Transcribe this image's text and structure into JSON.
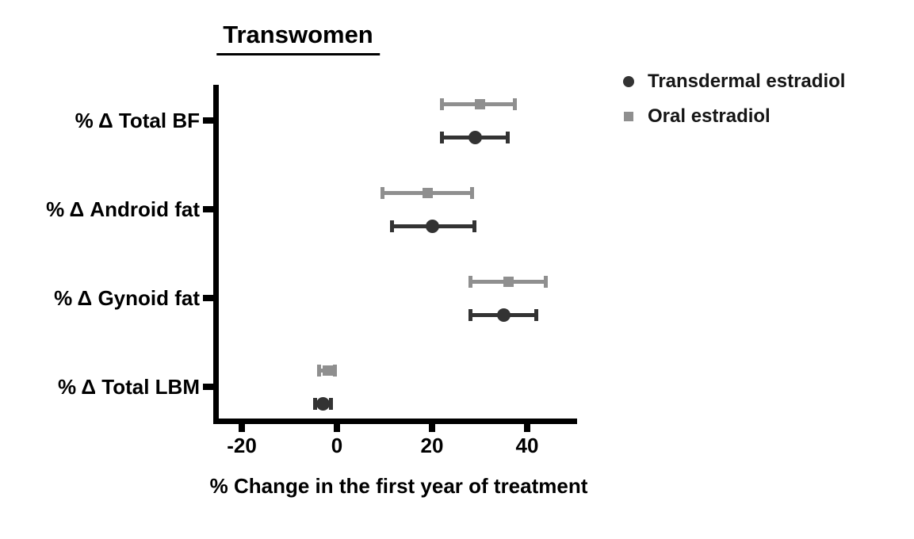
{
  "chart_data": {
    "type": "scatter",
    "subtype": "horizontal-point-estimates-with-error-bars",
    "title": "Transwomen",
    "xlabel": "% Change in the first year of treatment",
    "categories": [
      "% Δ Total BF",
      "% Δ Android fat",
      "% Δ Gynoid fat",
      "% Δ Total LBM"
    ],
    "x_ticks": [
      "-20",
      "0",
      "20",
      "40"
    ],
    "x_tick_values": [
      -20,
      0,
      20,
      40
    ],
    "xlim": [
      -26,
      50.5
    ],
    "grid": false,
    "legend_position": "top-right",
    "axis_color": "#000000",
    "legend": [
      {
        "label": "Transdermal estradiol",
        "marker": "circle",
        "color": "#333333"
      },
      {
        "label": "Oral estradiol",
        "marker": "square",
        "color": "#8f8f8f"
      }
    ],
    "series": [
      {
        "name": "Oral estradiol",
        "marker": "square",
        "color": "#8f8f8f",
        "values": [
          30,
          19,
          36,
          -2
        ],
        "ci_low": [
          22,
          9.5,
          28,
          -3.8
        ],
        "ci_high": [
          37.5,
          28.5,
          44,
          -0.3
        ]
      },
      {
        "name": "Transdermal estradiol",
        "marker": "circle",
        "color": "#333333",
        "values": [
          29,
          20,
          35,
          -3
        ],
        "ci_low": [
          22,
          11.5,
          28,
          -4.7
        ],
        "ci_high": [
          36,
          29,
          42,
          -1.2
        ]
      }
    ]
  }
}
